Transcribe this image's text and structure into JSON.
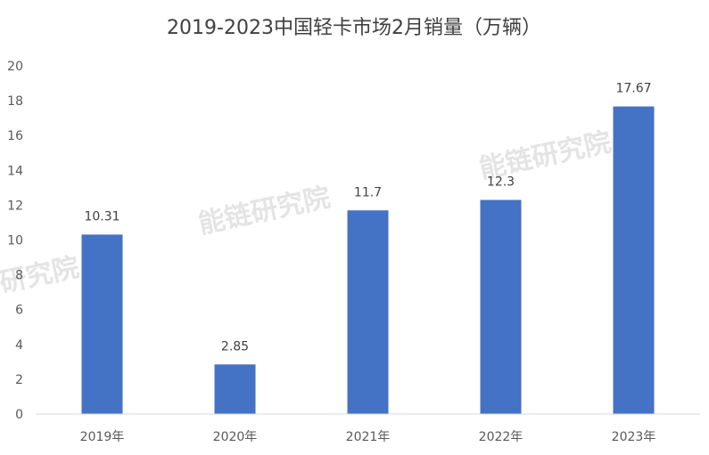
{
  "chart_data": {
    "type": "bar",
    "title": "2019-2023中国轻卡市场2月销量（万辆）",
    "categories": [
      "2019年",
      "2020年",
      "2021年",
      "2022年",
      "2023年"
    ],
    "values": [
      10.31,
      2.85,
      11.7,
      12.3,
      17.67
    ],
    "data_labels": [
      "10.31",
      "2.85",
      "11.7",
      "12.3",
      "17.67"
    ],
    "ylim": [
      0,
      20
    ],
    "yticks": [
      "0",
      "2",
      "4",
      "6",
      "8",
      "10",
      "12",
      "14",
      "16",
      "18",
      "20"
    ],
    "grid": false,
    "legend": "none",
    "bar_color": "#4472c4",
    "axis_color": "#d9d9d9"
  },
  "watermark": {
    "text_main": "能链研究院",
    "text_partial": "研究院",
    "color": "#d9d9d9"
  }
}
